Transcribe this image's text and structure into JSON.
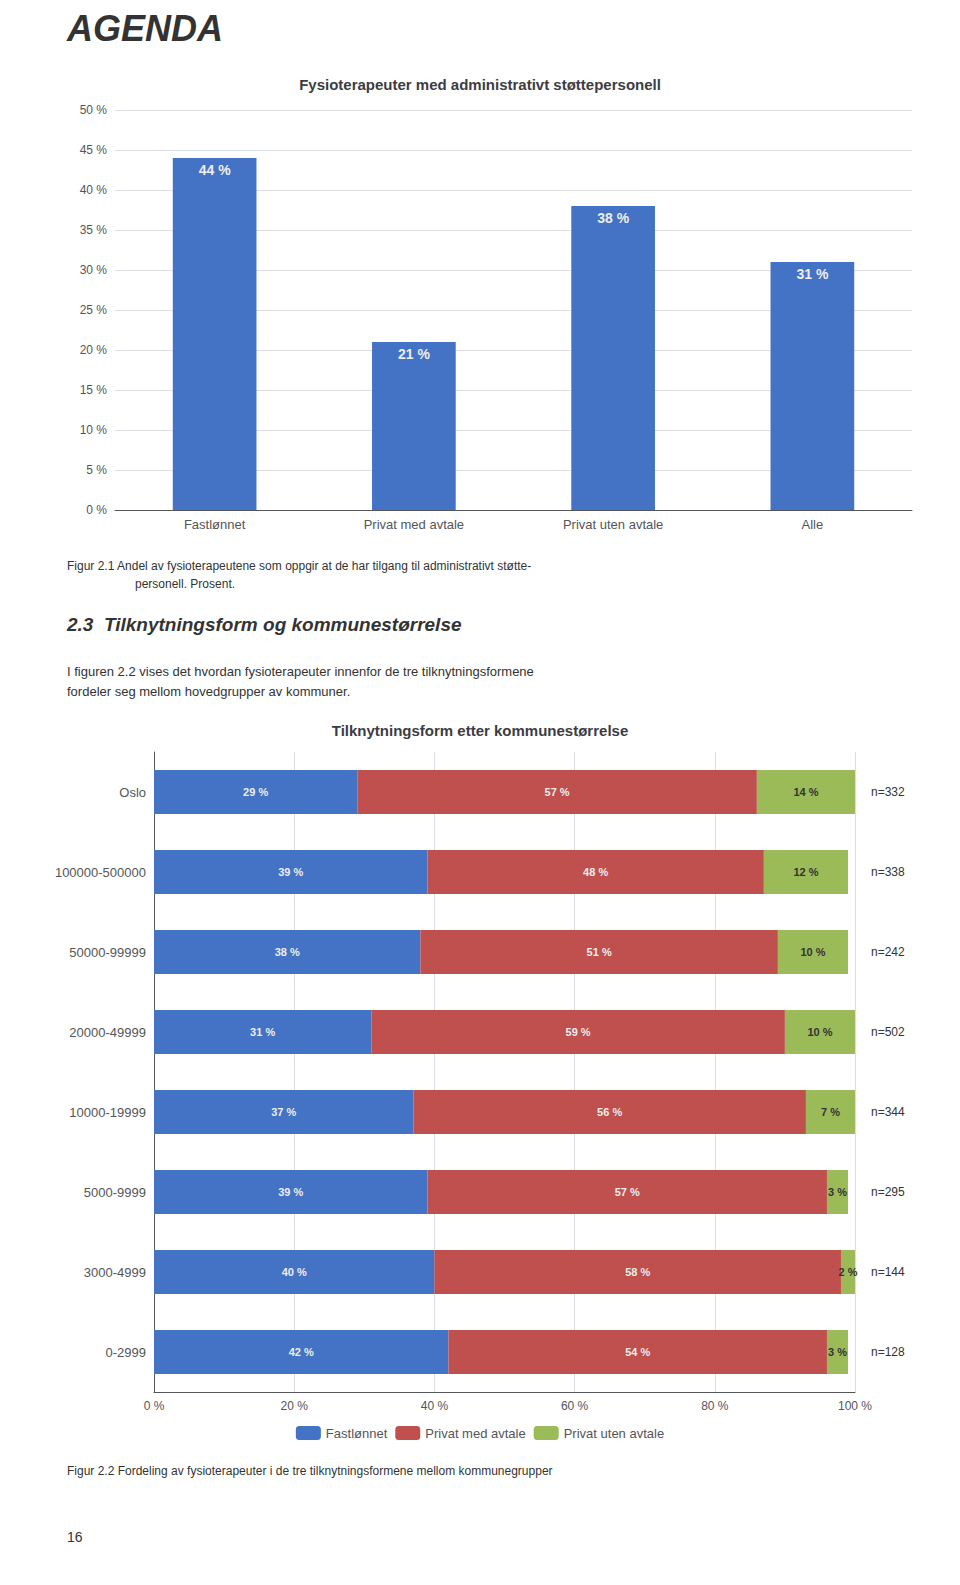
{
  "chart_data": [
    {
      "type": "bar",
      "title": "Fysioterapeuter med administrativt støttepersonell",
      "categories": [
        "Fastlønnet",
        "Privat med avtale",
        "Privat uten avtale",
        "Alle"
      ],
      "values": [
        44,
        21,
        38,
        31
      ],
      "value_labels": [
        "44 %",
        "21 %",
        "38 %",
        "31 %"
      ],
      "color": "#4472C4",
      "ylim": [
        0,
        50
      ],
      "yticks": [
        {
          "value": 0,
          "label": "0 %"
        },
        {
          "value": 5,
          "label": "5 %"
        },
        {
          "value": 10,
          "label": "10 %"
        },
        {
          "value": 15,
          "label": "15 %"
        },
        {
          "value": 20,
          "label": "20 %"
        },
        {
          "value": 25,
          "label": "25 %"
        },
        {
          "value": 30,
          "label": "30 %"
        },
        {
          "value": 35,
          "label": "35 %"
        },
        {
          "value": 40,
          "label": "40 %"
        },
        {
          "value": 45,
          "label": "45 %"
        },
        {
          "value": 50,
          "label": "50 %"
        }
      ],
      "grid": true,
      "data_labels": true,
      "annotations": [
        "AGENDA",
        "Figur 2.1 Andel av fysioterapeutene som oppgir at de har tilgang til administrativt støtte-",
        "personell. Prosent.",
        "2.3  Tilknytningsform og kommunestørrelse",
        "I figuren 2.2 vises det hvordan fysioterapeuter innenfor de tre tilknytningsformene",
        "fordeler seg mellom hovedgrupper av kommuner."
      ]
    },
    {
      "type": "bar",
      "orientation": "horizontal",
      "stacked": true,
      "title": "Tilknytningsform etter kommunestørrelse",
      "categories": [
        "Oslo",
        "100000-500000",
        "50000-99999",
        "20000-49999",
        "10000-19999",
        "5000-9999",
        "3000-4999",
        "0-2999"
      ],
      "series": [
        {
          "name": "Fastlønnet",
          "color": "#4472C4",
          "values": [
            29,
            39,
            38,
            31,
            37,
            39,
            40,
            42
          ],
          "value_labels": [
            "29 %",
            "39 %",
            "38 %",
            "31 %",
            "37 %",
            "39 %",
            "40 %",
            "42 %"
          ]
        },
        {
          "name": "Privat med avtale",
          "color": "#C0504D",
          "values": [
            57,
            48,
            51,
            59,
            56,
            57,
            58,
            54
          ],
          "value_labels": [
            "57 %",
            "48 %",
            "51 %",
            "59 %",
            "56 %",
            "57 %",
            "58 %",
            "54 %"
          ]
        },
        {
          "name": "Privat uten avtale",
          "color": "#9BBB59",
          "values": [
            14,
            12,
            10,
            10,
            7,
            3,
            2,
            3
          ],
          "value_labels": [
            "14 %",
            "12 %",
            "10 %",
            "10 %",
            "7 %",
            "3 %",
            "2 %",
            "3 %"
          ]
        }
      ],
      "xlim": [
        0,
        100
      ],
      "xticks": [
        {
          "value": 0,
          "label": "0 %"
        },
        {
          "value": 20,
          "label": "20 %"
        },
        {
          "value": 40,
          "label": "40 %"
        },
        {
          "value": 60,
          "label": "60 %"
        },
        {
          "value": 80,
          "label": "80 %"
        },
        {
          "value": 100,
          "label": "100 %"
        }
      ],
      "grid": true,
      "data_labels": true,
      "legend": "bottom",
      "annotations": [
        {
          "text": "n=332",
          "category": "Oslo"
        },
        {
          "text": "n=338",
          "category": "100000-500000"
        },
        {
          "text": "n=242",
          "category": "50000-99999"
        },
        {
          "text": "n=502",
          "category": "20000-49999"
        },
        {
          "text": "n=344",
          "category": "10000-19999"
        },
        {
          "text": "n=295",
          "category": "5000-9999"
        },
        {
          "text": "n=144",
          "category": "3000-4999"
        },
        {
          "text": "n=128",
          "category": "0-2999"
        },
        "Figur 2.2 Fordeling av fysioterapeuter i de tre tilknytningsformene mellom kommunegrupper",
        "16"
      ]
    }
  ]
}
